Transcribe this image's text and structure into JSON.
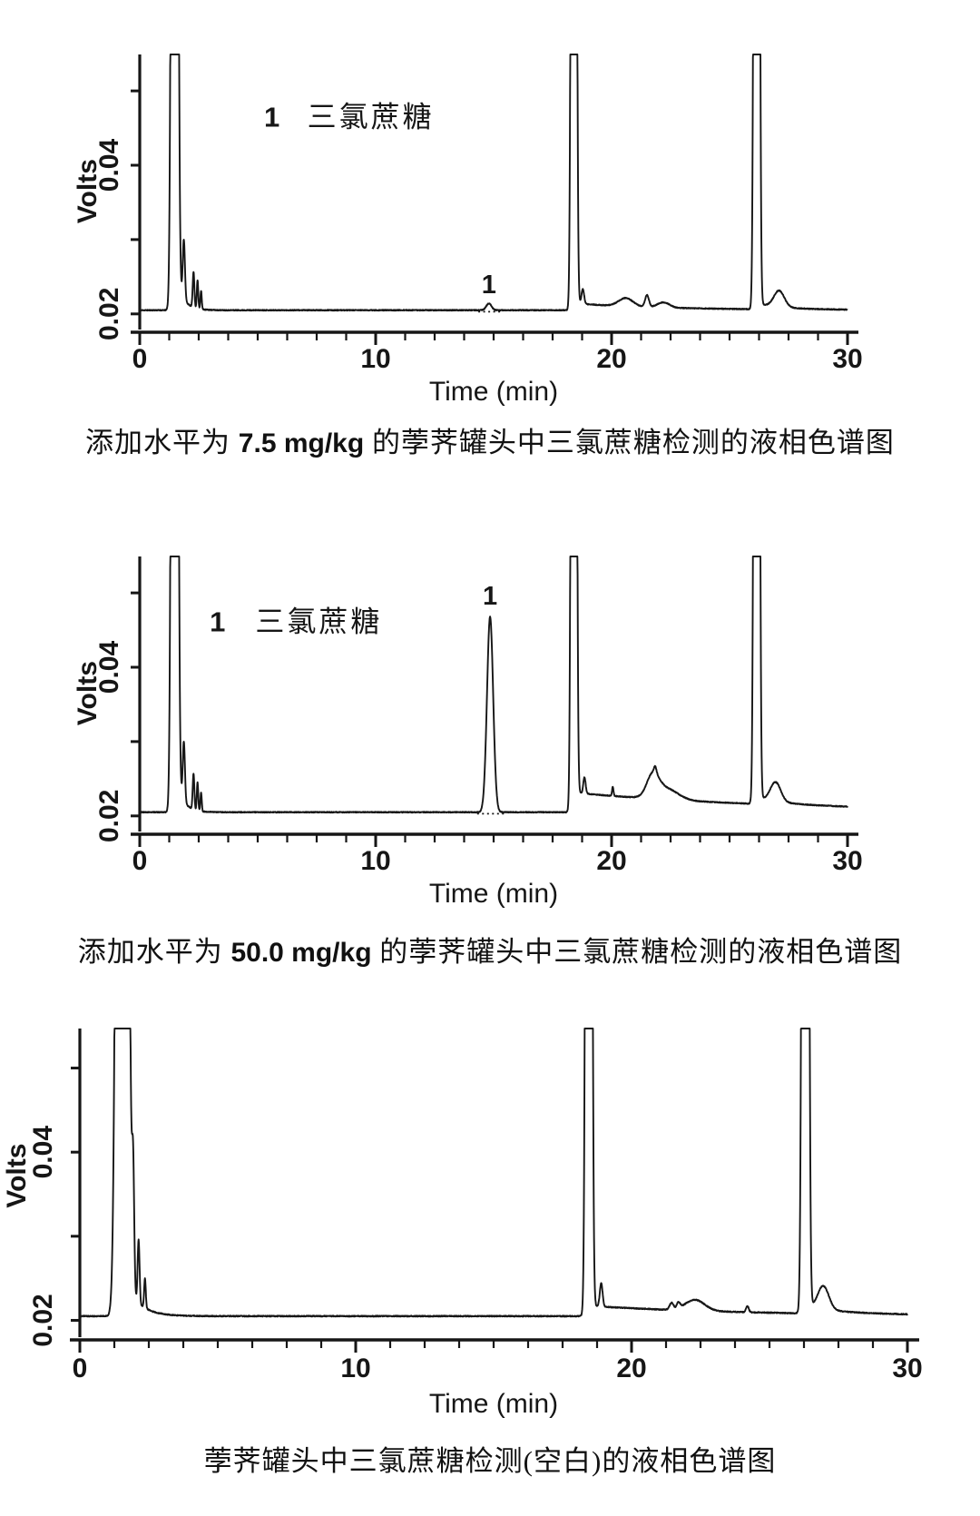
{
  "page": {
    "background": "#ffffff",
    "ink": "#161616",
    "description_labels": {
      "volts_axis": "Volts",
      "time_axis": "Time (min)"
    }
  },
  "captions": [
    {
      "prefix": "添加水平为 ",
      "value": "7.5 mg/kg",
      "suffix": " 的荸荠罐头中三氯蔗糖检测的液相色谱图"
    },
    {
      "prefix": "添加水平为 ",
      "value": "50.0 mg/kg",
      "suffix": " 的荸荠罐头中三氯蔗糖检测的液相色谱图"
    },
    {
      "prefix": "荸荠罐头中三氯蔗糖检测(空白)的液相色谱图",
      "value": "",
      "suffix": ""
    }
  ],
  "chart_data": [
    {
      "type": "line",
      "title": "添加水平为 7.5 mg/kg 的荸荠罐头中三氯蔗糖检测的液相色谱图",
      "xlabel": "Time (min)",
      "ylabel": "Volts",
      "xlim": [
        0,
        30
      ],
      "ylim": [
        0.0179,
        0.0549
      ],
      "x_major_ticks": [
        {
          "t": 0,
          "label": "0"
        },
        {
          "t": 10,
          "label": "10"
        },
        {
          "t": 20,
          "label": "20"
        },
        {
          "t": 30,
          "label": "30"
        }
      ],
      "x_minor_step": 1.25,
      "y_ticks": [
        {
          "v": 0.02,
          "label": "0.02"
        },
        {
          "v": 0.03
        },
        {
          "v": 0.04,
          "label": "0.04"
        },
        {
          "v": 0.05
        }
      ],
      "grid": false,
      "baseline_volts": 0.0205,
      "clip_volts": 0.0549,
      "noise": 6e-05,
      "legend": {
        "number": "1",
        "name": "三氯蔗糖",
        "number_t": 5.6,
        "name_t": 7.1,
        "volts": 0.0452
      },
      "peak_annotations": [
        {
          "text": "1",
          "t": 14.8,
          "volts": 0.0228
        }
      ],
      "integration_baseline": {
        "t1": 14.35,
        "t2": 15.3
      },
      "peaks": [
        {
          "t": 1.48,
          "h": 0.4,
          "w": 0.085,
          "note": "solvent front, clipped"
        },
        {
          "t": 1.87,
          "h": 0.008,
          "w": 0.045
        },
        {
          "t": 2.28,
          "h": 0.0048,
          "w": 0.035
        },
        {
          "t": 2.45,
          "h": 0.0038,
          "w": 0.03
        },
        {
          "t": 2.6,
          "h": 0.0025,
          "w": 0.028
        },
        {
          "t": 14.8,
          "h": 0.0009,
          "w": 0.11,
          "note": "sucralose 7.5 mg/kg, peak 1"
        },
        {
          "t": 18.4,
          "h": 0.4,
          "w": 0.07,
          "note": "matrix, clipped"
        },
        {
          "t": 18.78,
          "h": 0.002,
          "w": 0.055
        },
        {
          "t": 20.6,
          "h": 0.0011,
          "w": 0.3
        },
        {
          "t": 21.5,
          "h": 0.0016,
          "w": 0.08
        },
        {
          "t": 22.2,
          "h": 0.0007,
          "w": 0.25
        },
        {
          "t": 26.15,
          "h": 0.4,
          "w": 0.072,
          "note": "matrix, clipped"
        },
        {
          "t": 27.1,
          "h": 0.0022,
          "w": 0.22
        }
      ],
      "baseline_decays": [
        {
          "start": 1.62,
          "amp": 0.0035,
          "tau": 0.3
        },
        {
          "start": 18.5,
          "amp": 0.0009,
          "tau": 4
        },
        {
          "start": 26.22,
          "amp": 0.0007,
          "tau": 1.2
        }
      ]
    },
    {
      "type": "line",
      "title": "添加水平为 50.0 mg/kg 的荸荠罐头中三氯蔗糖检测的液相色谱图",
      "xlabel": "Time (min)",
      "ylabel": "Volts",
      "xlim": [
        0,
        30
      ],
      "ylim": [
        0.0179,
        0.0549
      ],
      "x_major_ticks": [
        {
          "t": 0,
          "label": "0"
        },
        {
          "t": 10,
          "label": "10"
        },
        {
          "t": 20,
          "label": "20"
        },
        {
          "t": 30,
          "label": "30"
        }
      ],
      "x_minor_step": 1.25,
      "y_ticks": [
        {
          "v": 0.02,
          "label": "0.02"
        },
        {
          "v": 0.03
        },
        {
          "v": 0.04,
          "label": "0.04"
        },
        {
          "v": 0.05
        }
      ],
      "grid": false,
      "baseline_volts": 0.0205,
      "clip_volts": 0.0549,
      "noise": 6e-05,
      "legend": {
        "number": "1",
        "name": "三氯蔗糖",
        "number_t": 3.3,
        "name_t": 4.9,
        "volts": 0.0448
      },
      "peak_annotations": [
        {
          "text": "1",
          "t": 14.85,
          "volts": 0.0484
        }
      ],
      "integration_baseline": {
        "t1": 14.3,
        "t2": 15.5
      },
      "peaks": [
        {
          "t": 1.48,
          "h": 0.4,
          "w": 0.085,
          "note": "solvent front, clipped"
        },
        {
          "t": 1.87,
          "h": 0.008,
          "w": 0.045
        },
        {
          "t": 2.28,
          "h": 0.0048,
          "w": 0.035
        },
        {
          "t": 2.45,
          "h": 0.0038,
          "w": 0.03
        },
        {
          "t": 2.6,
          "h": 0.0025,
          "w": 0.028
        },
        {
          "t": 14.85,
          "h": 0.0263,
          "w": 0.13,
          "note": "sucralose 50.0 mg/kg, peak 1, apex ~0.047 V"
        },
        {
          "t": 18.4,
          "h": 0.4,
          "w": 0.07,
          "note": "matrix, clipped"
        },
        {
          "t": 18.85,
          "h": 0.0022,
          "w": 0.05
        },
        {
          "t": 20.05,
          "h": 0.0012,
          "w": 0.03
        },
        {
          "t": 21.75,
          "h": 0.0028,
          "w": 0.25
        },
        {
          "t": 21.85,
          "h": 0.0008,
          "w": 0.05
        },
        {
          "t": 22.3,
          "h": 0.0015,
          "w": 0.5
        },
        {
          "t": 26.15,
          "h": 0.4,
          "w": 0.072,
          "note": "matrix, clipped"
        },
        {
          "t": 26.95,
          "h": 0.0026,
          "w": 0.22
        }
      ],
      "baseline_decays": [
        {
          "start": 1.62,
          "amp": 0.0035,
          "tau": 0.3
        },
        {
          "start": 18.5,
          "amp": 0.0026,
          "tau": 9
        },
        {
          "start": 26.22,
          "amp": 0.0008,
          "tau": 1.2
        }
      ]
    },
    {
      "type": "line",
      "title": "荸荠罐头中三氯蔗糖检测(空白)的液相色谱图",
      "xlabel": "Time (min)",
      "ylabel": "Volts",
      "xlim": [
        0,
        30
      ],
      "ylim": [
        0.018,
        0.0547
      ],
      "x_major_ticks": [
        {
          "t": 0,
          "label": "0"
        },
        {
          "t": 10,
          "label": "10"
        },
        {
          "t": 20,
          "label": "20"
        },
        {
          "t": 30,
          "label": "30"
        }
      ],
      "x_minor_step": 1.25,
      "y_ticks": [
        {
          "v": 0.02,
          "label": "0.02"
        },
        {
          "v": 0.03
        },
        {
          "v": 0.04,
          "label": "0.04"
        },
        {
          "v": 0.05
        }
      ],
      "grid": false,
      "baseline_volts": 0.0205,
      "clip_volts": 0.0547,
      "noise": 6e-05,
      "legend": null,
      "peak_annotations": [],
      "integration_baseline": null,
      "peaks": [
        {
          "t": 1.54,
          "h": 0.4,
          "w": 0.13,
          "note": "solvent front, clipped, wide"
        },
        {
          "t": 1.93,
          "h": 0.014,
          "w": 0.04
        },
        {
          "t": 2.13,
          "h": 0.0075,
          "w": 0.035
        },
        {
          "t": 2.36,
          "h": 0.0035,
          "w": 0.03
        },
        {
          "t": 18.45,
          "h": 0.4,
          "w": 0.068,
          "note": "matrix, clipped"
        },
        {
          "t": 18.9,
          "h": 0.0028,
          "w": 0.05
        },
        {
          "t": 21.45,
          "h": 0.0008,
          "w": 0.07
        },
        {
          "t": 21.7,
          "h": 0.0007,
          "w": 0.06
        },
        {
          "t": 22.3,
          "h": 0.0013,
          "w": 0.35
        },
        {
          "t": 24.2,
          "h": 0.0007,
          "w": 0.05
        },
        {
          "t": 26.3,
          "h": 0.4,
          "w": 0.072,
          "note": "matrix, clipped"
        },
        {
          "t": 26.95,
          "h": 0.0028,
          "w": 0.2
        }
      ],
      "baseline_decays": [
        {
          "start": 1.8,
          "amp": 0.003,
          "tau": 0.5
        },
        {
          "start": 18.55,
          "amp": 0.0012,
          "tau": 6
        },
        {
          "start": 26.37,
          "amp": 0.0008,
          "tau": 1.3
        }
      ]
    }
  ]
}
